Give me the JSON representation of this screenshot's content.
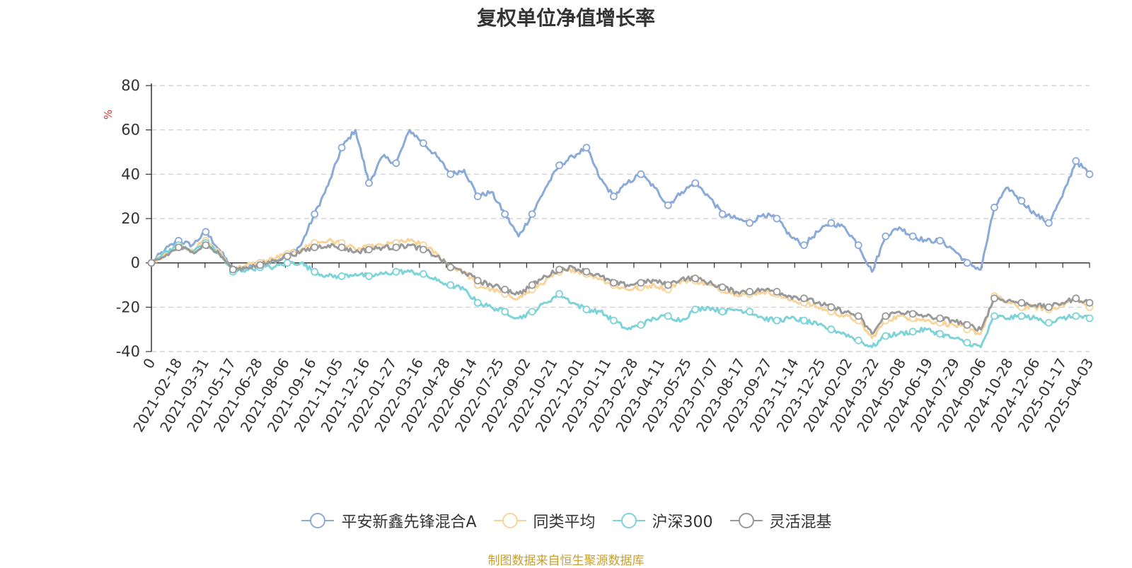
{
  "chart_data": {
    "type": "line",
    "title": "复权单位净值增长率",
    "ylabel": "%",
    "ylim": [
      -40,
      80
    ],
    "yticks": [
      -40,
      -20,
      0,
      20,
      40,
      60,
      80
    ],
    "grid": true,
    "legend_position": "bottom",
    "x_tick_labels": [
      "0",
      "2021-02-18",
      "2021-03-31",
      "2021-05-17",
      "2021-06-28",
      "2021-08-06",
      "2021-09-16",
      "2021-11-05",
      "2021-12-16",
      "2022-01-27",
      "2022-03-16",
      "2022-04-28",
      "2022-06-14",
      "2022-07-25",
      "2022-09-02",
      "2022-10-21",
      "2022-12-01",
      "2023-01-11",
      "2023-02-28",
      "2023-04-11",
      "2023-05-25",
      "2023-07-07",
      "2023-08-17",
      "2023-09-27",
      "2023-11-14",
      "2023-12-25",
      "2024-02-02",
      "2024-03-22",
      "2024-05-08",
      "2024-06-19",
      "2024-07-29",
      "2024-09-06",
      "2024-10-28",
      "2024-12-06",
      "2025-01-17",
      "2025-04-03"
    ],
    "series": [
      {
        "name": "平安新鑫先锋混合A",
        "color": "#8aaad8",
        "values": [
          0,
          6,
          10,
          8,
          14,
          6,
          -3,
          -2,
          0,
          1,
          3,
          8,
          22,
          35,
          52,
          60,
          36,
          48,
          45,
          60,
          54,
          48,
          40,
          42,
          30,
          32,
          22,
          12,
          22,
          34,
          44,
          48,
          52,
          38,
          30,
          36,
          40,
          34,
          26,
          32,
          36,
          30,
          22,
          20,
          18,
          22,
          20,
          12,
          8,
          14,
          18,
          16,
          8,
          -4,
          12,
          16,
          12,
          10,
          10,
          6,
          0,
          -3,
          25,
          34,
          28,
          22,
          18,
          30,
          46,
          40
        ]
      },
      {
        "name": "同类平均",
        "color": "#f8d49a",
        "values": [
          0,
          4,
          8,
          6,
          10,
          5,
          -3,
          -1,
          0,
          2,
          4,
          6,
          9,
          10,
          9,
          6,
          7,
          8,
          9,
          10,
          8,
          4,
          -2,
          -4,
          -10,
          -12,
          -14,
          -16,
          -12,
          -8,
          -4,
          -3,
          -5,
          -7,
          -10,
          -12,
          -11,
          -10,
          -12,
          -8,
          -8,
          -10,
          -12,
          -14,
          -14,
          -13,
          -14,
          -17,
          -18,
          -20,
          -22,
          -24,
          -26,
          -34,
          -26,
          -24,
          -25,
          -26,
          -27,
          -28,
          -30,
          -32,
          -15,
          -18,
          -20,
          -20,
          -21,
          -19,
          -16,
          -20
        ]
      },
      {
        "name": "沪深300",
        "color": "#7dd3d8",
        "values": [
          0,
          5,
          8,
          5,
          9,
          4,
          -4,
          -3,
          -2,
          -2,
          0,
          0,
          -4,
          -6,
          -6,
          -5,
          -6,
          -5,
          -4,
          -4,
          -5,
          -8,
          -10,
          -12,
          -18,
          -20,
          -22,
          -25,
          -22,
          -18,
          -14,
          -18,
          -21,
          -22,
          -26,
          -30,
          -28,
          -25,
          -24,
          -26,
          -21,
          -20,
          -22,
          -21,
          -22,
          -25,
          -26,
          -25,
          -26,
          -28,
          -30,
          -32,
          -35,
          -38,
          -33,
          -32,
          -31,
          -30,
          -32,
          -34,
          -36,
          -38,
          -24,
          -25,
          -24,
          -25,
          -27,
          -25,
          -24,
          -25
        ]
      },
      {
        "name": "灵活混基",
        "color": "#999999",
        "values": [
          0,
          3,
          7,
          5,
          8,
          4,
          -3,
          -2,
          -1,
          1,
          3,
          5,
          7,
          8,
          7,
          5,
          6,
          7,
          7,
          8,
          6,
          3,
          -2,
          -4,
          -8,
          -10,
          -12,
          -14,
          -10,
          -6,
          -3,
          -2,
          -4,
          -6,
          -9,
          -10,
          -9,
          -8,
          -10,
          -7,
          -7,
          -9,
          -11,
          -13,
          -13,
          -12,
          -13,
          -15,
          -16,
          -18,
          -20,
          -22,
          -24,
          -32,
          -24,
          -22,
          -23,
          -24,
          -25,
          -26,
          -28,
          -30,
          -16,
          -17,
          -18,
          -19,
          -20,
          -18,
          -16,
          -18
        ]
      }
    ]
  },
  "legend_items": [
    "平安新鑫先锋混合A",
    "同类平均",
    "沪深300",
    "灵活混基"
  ],
  "source_note": "制图数据来自恒生聚源数据库"
}
